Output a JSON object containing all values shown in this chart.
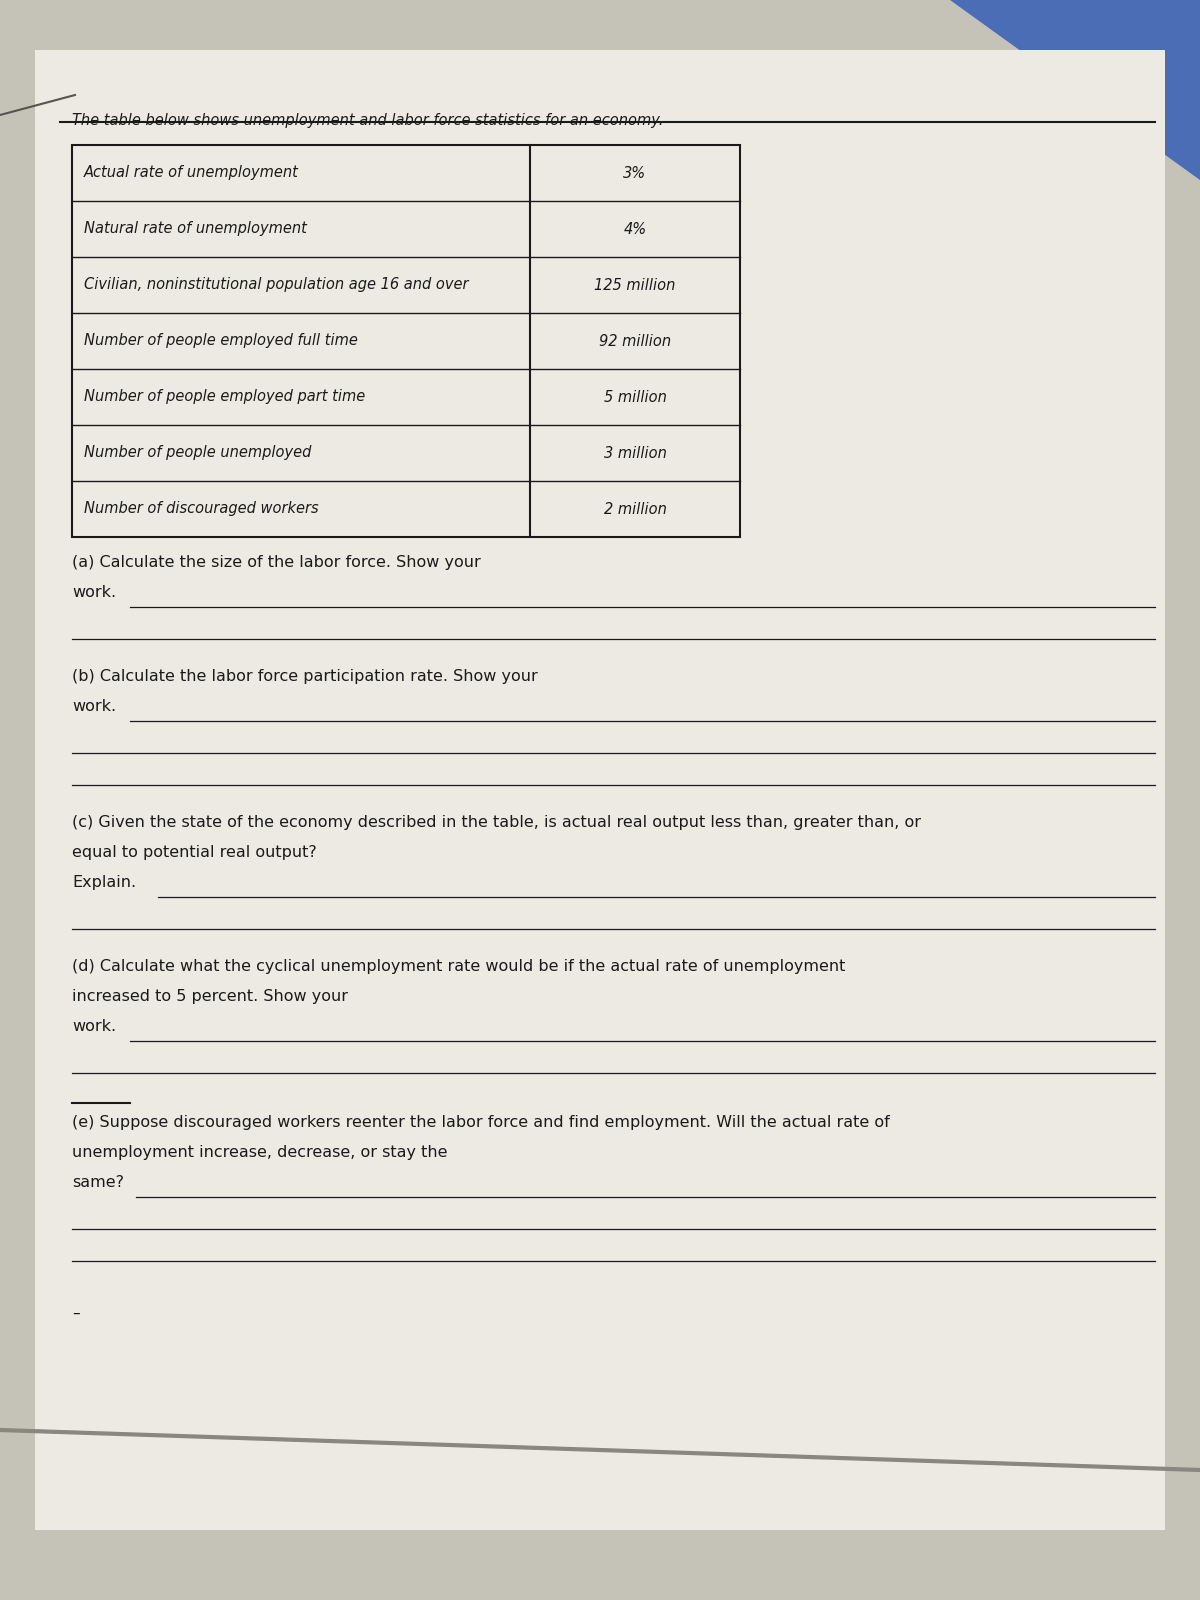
{
  "bg_color_top": "#c8c5bc",
  "bg_color": "#b8b5ac",
  "paper_color": "#e8e5dc",
  "blue_corner_color": "#3a5fa0",
  "title_text": "The table below shows unemployment and labor force statistics for an economy.",
  "rows": [
    {
      "label": "Actual rate of unemployment",
      "value": "3%"
    },
    {
      "label": "Natural rate of unemployment",
      "value": "4%"
    },
    {
      "label": "Civilian, noninstitutional population age 16 and over",
      "value": "125 million"
    },
    {
      "label": "Number of people employed full time",
      "value": "92 million"
    },
    {
      "label": "Number of people employed part time",
      "value": "5 million"
    },
    {
      "label": "Number of people unemployed",
      "value": "3 million"
    },
    {
      "label": "Number of discouraged workers",
      "value": "2 million"
    }
  ],
  "text_color": "#1a1a1a",
  "line_color": "#1a1a1a",
  "table_border_color": "#1a1a1a",
  "q_a": "(a) Calculate the size of the labor force. Show your\nwork.",
  "q_b": "(b) Calculate the labor force participation rate. Show your\nwork.",
  "q_c": "(c) Given the state of the economy described in the table, is actual real output less than, greater than, or\nequal to potential real output?\nExplain.",
  "q_d": "(d) Calculate what the cyclical unemployment rate would be if the actual rate of unemployment\nincreased to 5 percent. Show your\nwork.",
  "q_e": "(e) Suppose discouraged workers reenter the labor force and find employment. Will the actual rate of\nunemployment increase, decrease, or stay the\nsame?"
}
